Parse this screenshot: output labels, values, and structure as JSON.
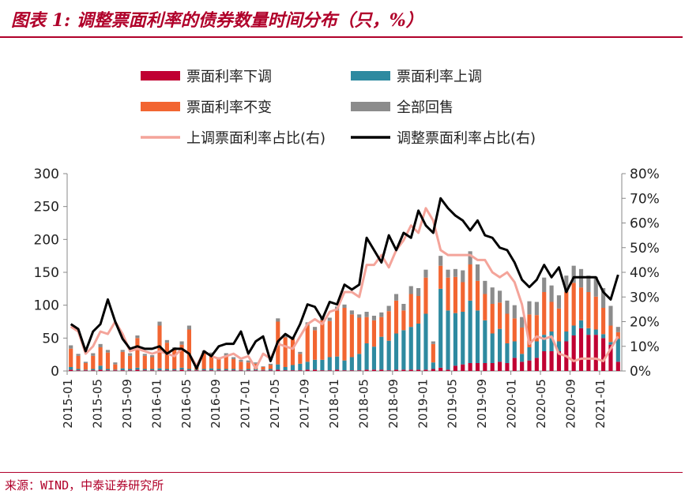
{
  "title": "图表 1:   调整票面利率的债券数量时间分布（只，%）",
  "source": "来源：WIND，中泰证券研究所",
  "colors": {
    "down": "#c00032",
    "up": "#2e8aa0",
    "unchanged": "#f26531",
    "putback": "#8c8c8c",
    "up_ratio": "#f4a49a",
    "adj_ratio": "#000000",
    "axis": "#888888",
    "title": "#b0002a"
  },
  "chart_data": {
    "type": "bar",
    "stacked": true,
    "title": "调整票面利率的债券数量时间分布（只，%）",
    "xlabel": "",
    "ylabel": "",
    "ylim": [
      0,
      300
    ],
    "yticks": [
      0,
      50,
      100,
      150,
      200,
      250,
      300
    ],
    "y2lim": [
      0,
      0.8
    ],
    "y2ticks": [
      "0%",
      "10%",
      "20%",
      "30%",
      "40%",
      "50%",
      "60%",
      "70%",
      "80%"
    ],
    "xtick_labels": [
      "2015-01",
      "2015-05",
      "2015-09",
      "2016-01",
      "2016-05",
      "2016-09",
      "2017-01",
      "2017-05",
      "2017-09",
      "2018-01",
      "2018-05",
      "2018-09",
      "2019-01",
      "2019-05",
      "2019-09",
      "2020-01",
      "2020-05",
      "2020-09",
      "2021-01"
    ],
    "categories": [
      "2015-01",
      "2015-02",
      "2015-03",
      "2015-04",
      "2015-05",
      "2015-06",
      "2015-07",
      "2015-08",
      "2015-09",
      "2015-10",
      "2015-11",
      "2015-12",
      "2016-01",
      "2016-02",
      "2016-03",
      "2016-04",
      "2016-05",
      "2016-06",
      "2016-07",
      "2016-08",
      "2016-09",
      "2016-10",
      "2016-11",
      "2016-12",
      "2017-01",
      "2017-02",
      "2017-03",
      "2017-04",
      "2017-05",
      "2017-06",
      "2017-07",
      "2017-08",
      "2017-09",
      "2017-10",
      "2017-11",
      "2017-12",
      "2018-01",
      "2018-02",
      "2018-03",
      "2018-04",
      "2018-05",
      "2018-06",
      "2018-07",
      "2018-08",
      "2018-09",
      "2018-10",
      "2018-11",
      "2018-12",
      "2019-01",
      "2019-02",
      "2019-03",
      "2019-04",
      "2019-05",
      "2019-06",
      "2019-07",
      "2019-08",
      "2019-09",
      "2019-10",
      "2019-11",
      "2019-12",
      "2020-01",
      "2020-02",
      "2020-03",
      "2020-04",
      "2020-05",
      "2020-06",
      "2020-07",
      "2020-08",
      "2020-09",
      "2020-10",
      "2020-11",
      "2020-12",
      "2021-01",
      "2021-02",
      "2021-03"
    ],
    "legend_position": "top",
    "series": [
      {
        "name": "票面利率下调",
        "kind": "bar",
        "axis": "left",
        "values": [
          2,
          1,
          1,
          1,
          2,
          1,
          1,
          1,
          1,
          2,
          1,
          1,
          1,
          1,
          1,
          2,
          1,
          1,
          1,
          1,
          1,
          1,
          1,
          1,
          1,
          1,
          1,
          1,
          2,
          1,
          1,
          1,
          2,
          2,
          1,
          1,
          2,
          1,
          1,
          1,
          2,
          2,
          2,
          1,
          2,
          2,
          2,
          2,
          2,
          3,
          5,
          2,
          8,
          10,
          12,
          12,
          12,
          12,
          14,
          12,
          20,
          14,
          16,
          20,
          30,
          30,
          30,
          45,
          54,
          65,
          55,
          55,
          50,
          40,
          14
        ]
      },
      {
        "name": "票面利率上调",
        "kind": "bar",
        "axis": "left",
        "values": [
          4,
          2,
          1,
          2,
          6,
          2,
          1,
          3,
          2,
          3,
          2,
          2,
          3,
          2,
          2,
          3,
          2,
          1,
          2,
          3,
          2,
          2,
          2,
          1,
          2,
          2,
          1,
          2,
          8,
          5,
          8,
          10,
          12,
          15,
          16,
          20,
          20,
          15,
          20,
          25,
          40,
          35,
          50,
          45,
          55,
          60,
          65,
          70,
          85,
          10,
          120,
          90,
          80,
          80,
          95,
          80,
          65,
          45,
          50,
          30,
          25,
          12,
          20,
          25,
          25,
          30,
          15,
          15,
          15,
          12,
          10,
          8,
          6,
          4,
          35
        ]
      },
      {
        "name": "票面利率不变",
        "kind": "bar",
        "axis": "left",
        "values": [
          28,
          20,
          10,
          20,
          28,
          25,
          8,
          25,
          20,
          45,
          20,
          18,
          65,
          40,
          30,
          35,
          60,
          4,
          25,
          20,
          15,
          20,
          15,
          12,
          10,
          8,
          4,
          6,
          65,
          45,
          40,
          15,
          55,
          45,
          60,
          55,
          70,
          80,
          65,
          55,
          40,
          40,
          30,
          45,
          50,
          30,
          50,
          42,
          55,
          28,
          35,
          50,
          55,
          45,
          55,
          45,
          40,
          45,
          40,
          45,
          35,
          40,
          50,
          40,
          65,
          45,
          50,
          60,
          65,
          50,
          55,
          50,
          40,
          25,
          10
        ]
      },
      {
        "name": "全部回售",
        "kind": "bar",
        "axis": "left",
        "values": [
          5,
          3,
          2,
          4,
          5,
          4,
          3,
          3,
          4,
          4,
          3,
          3,
          6,
          4,
          3,
          5,
          6,
          2,
          3,
          4,
          3,
          4,
          3,
          3,
          3,
          2,
          1,
          2,
          5,
          5,
          3,
          3,
          5,
          5,
          6,
          5,
          6,
          5,
          6,
          5,
          8,
          7,
          7,
          8,
          10,
          10,
          12,
          12,
          12,
          4,
          15,
          12,
          12,
          18,
          20,
          25,
          20,
          25,
          18,
          20,
          20,
          16,
          20,
          20,
          22,
          25,
          20,
          25,
          26,
          28,
          25,
          30,
          30,
          30,
          8
        ]
      },
      {
        "name": "上调票面利率占比(右)",
        "kind": "line",
        "axis": "right",
        "values": [
          0.18,
          0.16,
          0.07,
          0.1,
          0.16,
          0.15,
          0.2,
          0.15,
          0.08,
          0.09,
          0.08,
          0.07,
          0.08,
          0.07,
          0.06,
          0.09,
          0.07,
          0.02,
          0.08,
          0.06,
          0.05,
          0.06,
          0.07,
          0.05,
          0.06,
          0.01,
          0.07,
          0.05,
          0.11,
          0.1,
          0.09,
          0.14,
          0.19,
          0.21,
          0.19,
          0.24,
          0.25,
          0.32,
          0.32,
          0.3,
          0.43,
          0.43,
          0.47,
          0.42,
          0.49,
          0.53,
          0.59,
          0.56,
          0.66,
          0.61,
          0.49,
          0.47,
          0.47,
          0.47,
          0.47,
          0.45,
          0.45,
          0.4,
          0.38,
          0.4,
          0.36,
          0.27,
          0.11,
          0.14,
          0.13,
          0.14,
          0.07,
          0.06,
          0.04,
          0.05,
          0.05,
          0.05,
          0.04,
          0.09,
          0.14
        ]
      },
      {
        "name": "调整票面利率占比(右)",
        "kind": "line",
        "axis": "right",
        "values": [
          0.19,
          0.17,
          0.08,
          0.16,
          0.19,
          0.29,
          0.2,
          0.13,
          0.09,
          0.1,
          0.09,
          0.09,
          0.1,
          0.07,
          0.09,
          0.09,
          0.07,
          0.01,
          0.08,
          0.06,
          0.1,
          0.11,
          0.11,
          0.16,
          0.07,
          0.12,
          0.14,
          0.04,
          0.12,
          0.15,
          0.13,
          0.19,
          0.27,
          0.26,
          0.21,
          0.28,
          0.27,
          0.35,
          0.33,
          0.35,
          0.54,
          0.49,
          0.44,
          0.55,
          0.49,
          0.56,
          0.54,
          0.65,
          0.59,
          0.56,
          0.7,
          0.66,
          0.63,
          0.61,
          0.57,
          0.61,
          0.55,
          0.54,
          0.5,
          0.49,
          0.44,
          0.37,
          0.34,
          0.37,
          0.43,
          0.38,
          0.42,
          0.32,
          0.38,
          0.38,
          0.38,
          0.38,
          0.32,
          0.29,
          0.39
        ]
      }
    ]
  }
}
